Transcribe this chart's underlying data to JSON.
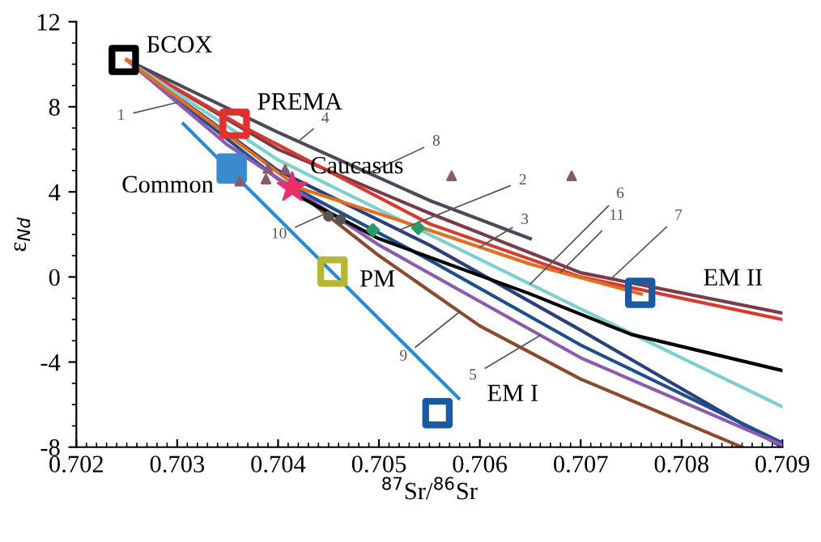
{
  "chart_data": {
    "type": "line",
    "xlabel": "$^{87}$Sr/$^{86}$Sr",
    "ylabel": "ε$_{Nd}$",
    "xlim": [
      0.702,
      0.709
    ],
    "ylim": [
      -8,
      12
    ],
    "xticks": [
      {
        "value": 0.702,
        "label": "0.702"
      },
      {
        "value": 0.703,
        "label": "0.703"
      },
      {
        "value": 0.704,
        "label": "0.704"
      },
      {
        "value": 0.705,
        "label": "0.705"
      },
      {
        "value": 0.706,
        "label": "0.706"
      },
      {
        "value": 0.707,
        "label": "0.707"
      },
      {
        "value": 0.708,
        "label": "0.708"
      },
      {
        "value": 0.709,
        "label": "0.709"
      }
    ],
    "yticks": [
      -8,
      -4,
      0,
      4,
      8,
      12
    ],
    "grid": false,
    "legend": false,
    "series": [
      {
        "color": "#7b3a4a",
        "x": [
          0.7025,
          0.704,
          0.7055,
          0.707,
          0.709
        ],
        "values": [
          10.2,
          6.0,
          3.0,
          0.2,
          -1.7
        ]
      },
      {
        "color": "#d63a2f",
        "x": [
          0.7025,
          0.7036,
          0.7055,
          0.707,
          0.709
        ],
        "values": [
          10.2,
          7.2,
          2.5,
          0.0,
          -2.0
        ]
      },
      {
        "color": "#4a4a5a",
        "x": [
          0.7025,
          0.704,
          0.7055,
          0.7065
        ],
        "values": [
          10.2,
          6.8,
          3.6,
          1.8
        ]
      },
      {
        "color": "#2b3f7a",
        "x": [
          0.7025,
          0.704,
          0.7055,
          0.707,
          0.709
        ],
        "values": [
          10.2,
          5.0,
          1.5,
          -2.5,
          -8
        ]
      },
      {
        "color": "#1f4e8c",
        "x": [
          0.7025,
          0.704,
          0.7055,
          0.707,
          0.709
        ],
        "values": [
          10.2,
          4.6,
          0.8,
          -3.2,
          -7.8
        ]
      },
      {
        "color": "#8c5bb0",
        "x": [
          0.7025,
          0.7035,
          0.705,
          0.707,
          0.709
        ],
        "values": [
          10.2,
          6.2,
          1.5,
          -3.8,
          -7.9
        ]
      },
      {
        "color": "#8b4a2b",
        "x": [
          0.7043,
          0.705,
          0.706,
          0.707,
          0.7086
        ],
        "values": [
          3.6,
          1.0,
          -2.3,
          -4.8,
          -8
        ]
      },
      {
        "color": "#7fcfcf",
        "x": [
          0.7025,
          0.704,
          0.7055,
          0.707,
          0.709
        ],
        "values": [
          10.2,
          5.5,
          2.0,
          -1.5,
          -6.1
        ]
      },
      {
        "color": "#e07020",
        "x": [
          0.7025,
          0.7042,
          0.7055,
          0.7065,
          0.7076
        ],
        "values": [
          10.2,
          4.2,
          2.2,
          0.6,
          -0.8
        ]
      },
      {
        "color": "#000000",
        "x": [
          0.7042,
          0.705,
          0.7065,
          0.7075,
          0.709
        ],
        "values": [
          3.8,
          1.8,
          -0.8,
          -2.7,
          -4.4
        ]
      },
      {
        "color": "#2a8ad0",
        "x": [
          0.70306,
          0.70579
        ],
        "values": [
          7.2,
          -5.7
        ]
      },
      {
        "type": "scatter",
        "marker": "triangle",
        "color": "#8a5a70",
        "x": [
          0.7039,
          0.70388,
          0.70407,
          0.70362,
          0.70572,
          0.70691
        ],
        "values": [
          5.1,
          4.6,
          5.05,
          4.5,
          4.75,
          4.75
        ]
      },
      {
        "type": "scatter",
        "marker": "diamond",
        "color": "#2a9a6a",
        "x": [
          0.70494,
          0.70539
        ],
        "values": [
          2.2,
          2.3
        ]
      },
      {
        "type": "scatter",
        "marker": "circle",
        "color": "#555555",
        "x": [
          0.7045,
          0.70462
        ],
        "values": [
          2.85,
          2.7
        ]
      },
      {
        "type": "scatter",
        "marker": "square",
        "name": "БCOX",
        "color": "#000000",
        "x": [
          0.70247
        ],
        "values": [
          10.2
        ]
      },
      {
        "type": "scatter",
        "marker": "square",
        "name": "PREMA",
        "color": "#e03030",
        "x": [
          0.70357
        ],
        "values": [
          7.2
        ]
      },
      {
        "type": "scatter",
        "marker": "square",
        "name": "Common",
        "color": "#3a8ad0",
        "x": [
          0.70354
        ],
        "values": [
          5.1
        ]
      },
      {
        "type": "scatter",
        "marker": "star",
        "name": "Caucasus",
        "color": "#e8306a",
        "x": [
          0.70414
        ],
        "values": [
          4.2
        ]
      },
      {
        "type": "scatter",
        "marker": "square",
        "name": "PM",
        "color": "#b8b830",
        "x": [
          0.70454
        ],
        "values": [
          0.25
        ]
      },
      {
        "type": "scatter",
        "marker": "square",
        "name": "EM I",
        "color": "#1a5aa0",
        "x": [
          0.70558
        ],
        "values": [
          -6.4
        ]
      },
      {
        "type": "scatter",
        "marker": "square",
        "name": "EM II",
        "color": "#1a5aa0",
        "x": [
          0.70759
        ],
        "values": [
          -0.75
        ]
      }
    ],
    "annotations": [
      {
        "text": "1",
        "x": 0.703,
        "y": 8.2
      },
      {
        "text": "4",
        "x": 0.7042,
        "y": 6.37
      },
      {
        "text": "8",
        "x": 0.7049,
        "y": 4.88
      },
      {
        "text": "2",
        "x": 0.7052,
        "y": 2.2
      },
      {
        "text": "3",
        "x": 0.706,
        "y": 1.4
      },
      {
        "text": "6",
        "x": 0.7065,
        "y": -0.33
      },
      {
        "text": "11",
        "x": 0.7068,
        "y": 0.22
      },
      {
        "text": "7",
        "x": 0.7073,
        "y": -0.09
      },
      {
        "text": "9",
        "x": 0.7058,
        "y": -1.64
      },
      {
        "text": "5",
        "x": 0.7066,
        "y": -2.74
      },
      {
        "text": "10",
        "x": 0.7045,
        "y": 3.05
      }
    ]
  }
}
